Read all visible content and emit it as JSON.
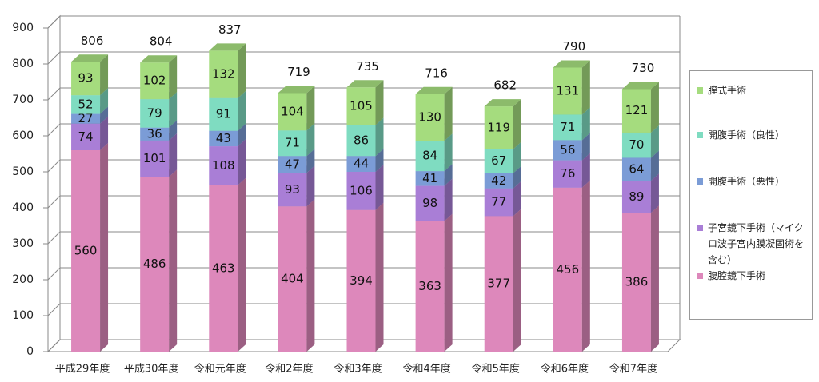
{
  "chart_data": {
    "type": "stacked-bar-3d",
    "categories": [
      "平成29年度",
      "平成30年度",
      "令和元年度",
      "令和2年度",
      "令和3年度",
      "令和4年度",
      "令和5年度",
      "令和6年度",
      "令和7年度"
    ],
    "series": [
      {
        "name": "腹腔鏡下手術",
        "color": "#dd88bb",
        "values": [
          560,
          486,
          463,
          404,
          394,
          363,
          377,
          456,
          386
        ]
      },
      {
        "name": "子宮鏡下手術（マイクロ波子宮内膜凝固術を含む）",
        "color": "#a97ed6",
        "values": [
          74,
          101,
          108,
          93,
          106,
          98,
          77,
          76,
          89
        ]
      },
      {
        "name": "開腹手術（悪性）",
        "color": "#7b9cd6",
        "values": [
          27,
          36,
          43,
          47,
          44,
          41,
          42,
          56,
          64
        ]
      },
      {
        "name": "開腹手術（良性）",
        "color": "#7fdcc1",
        "values": [
          52,
          79,
          91,
          71,
          86,
          84,
          67,
          71,
          70
        ]
      },
      {
        "name": "膣式手術",
        "color": "#a5dc7e",
        "values": [
          93,
          102,
          132,
          104,
          105,
          130,
          119,
          131,
          121
        ]
      }
    ],
    "totals": [
      806,
      804,
      837,
      719,
      735,
      716,
      682,
      790,
      730
    ],
    "ylim": [
      0,
      900
    ],
    "yticks": [
      0,
      100,
      200,
      300,
      400,
      500,
      600,
      700,
      800,
      900
    ],
    "grid": true
  }
}
